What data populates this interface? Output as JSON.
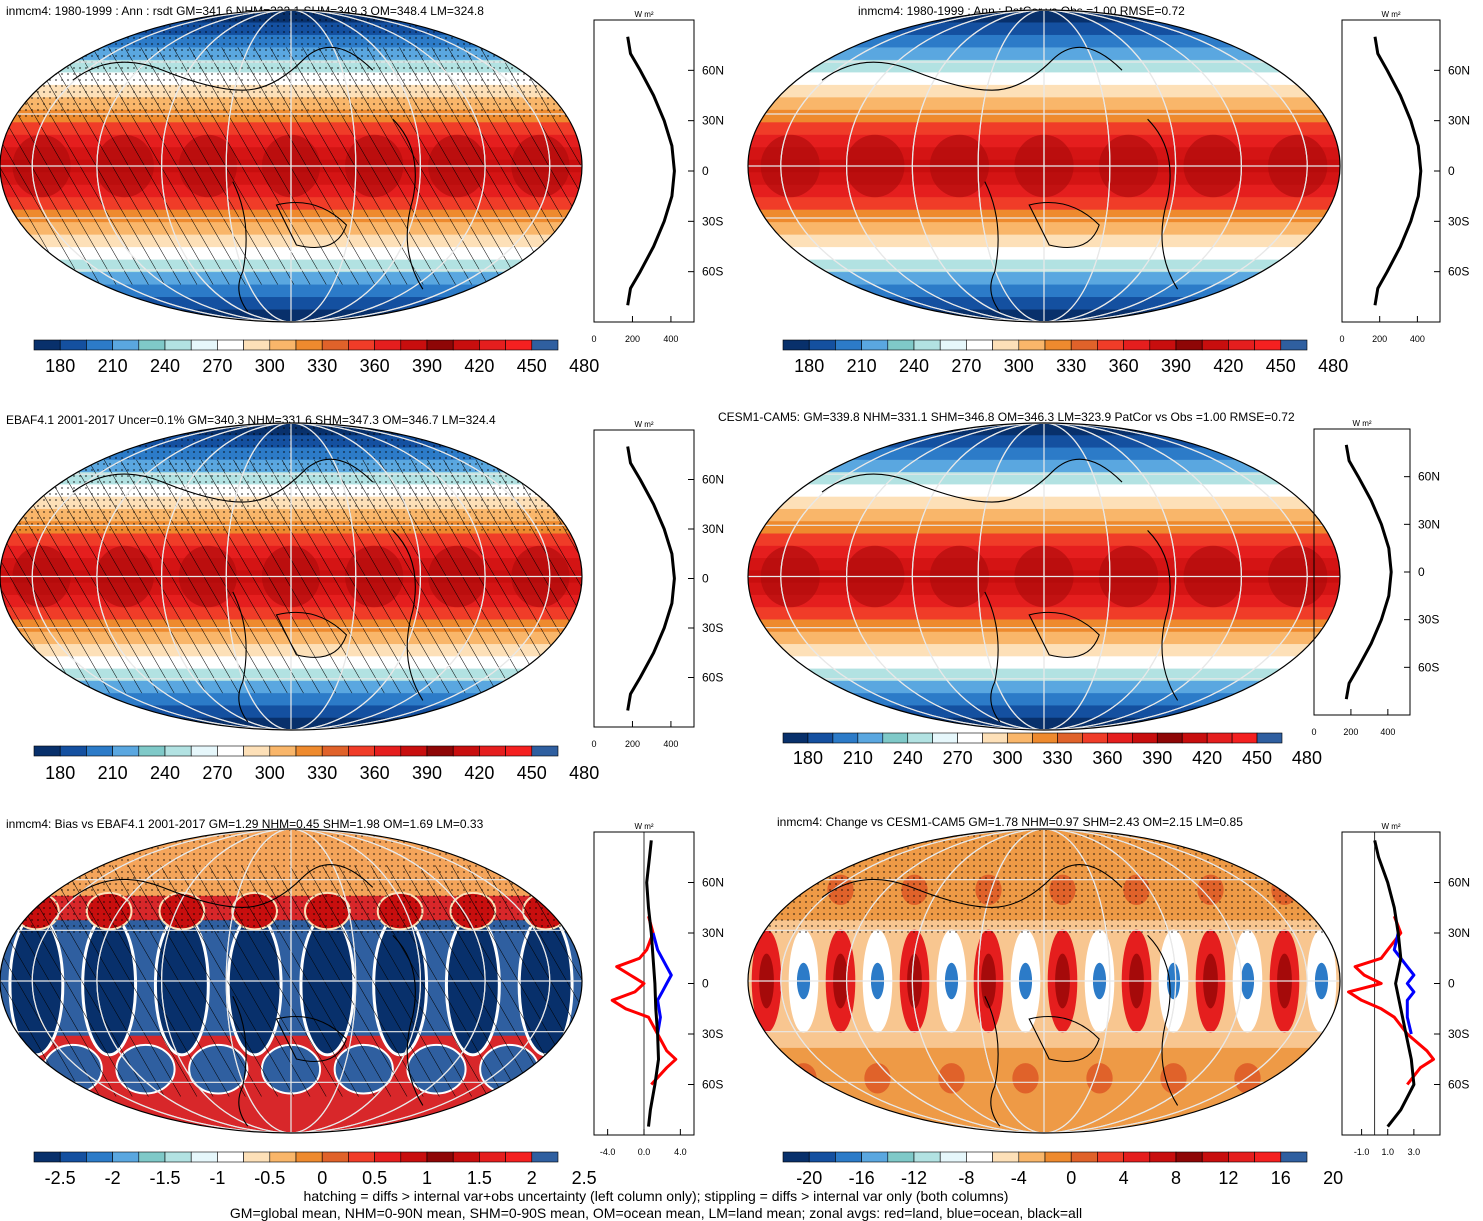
{
  "footer": {
    "line1": "hatching = diffs > internal var+obs uncertainty (left column only); stippling = diffs > internal var only (both columns)",
    "line2": "GM=global mean, NHM=0-90N mean, SHM=0-90S mean, OM=ocean mean, LM=land mean; zonal avgs: red=land, blue=ocean, black=all"
  },
  "palettes": {
    "full": [
      "#08306b",
      "#1450a0",
      "#2c7bc8",
      "#5aa7e0",
      "#7fc9c8",
      "#b2e2e2",
      "#e6f7fb",
      "#ffffff",
      "#fde0b8",
      "#f9b66a",
      "#ee8a2e",
      "#e0622a",
      "#f03c28",
      "#e51e1e",
      "#c80e0e",
      "#8e0606",
      "#c80e0e",
      "#e51e1e",
      "#f42020",
      "#2f5fa0"
    ],
    "bias": [
      "#08306b",
      "#1450a0",
      "#2c7bc8",
      "#5aa7e0",
      "#7fc9c8",
      "#b2e2e2",
      "#e6f7fb",
      "#ffffff",
      "#fde0b8",
      "#f9b66a",
      "#ee8a2e",
      "#e0622a",
      "#f03c28",
      "#e51e1e",
      "#c80e0e",
      "#8e0606",
      "#c80e0e",
      "#e51e1e",
      "#f42020",
      "#2f5fa0"
    ]
  },
  "chart_data": [
    {
      "type": "heatmap",
      "panel": "top-left",
      "title": "inmcm4: 1980-1999 : Ann : rsdt GM=341.6 NHM=332.1 SHM=349.3 OM=348.4 LM=324.8",
      "colorbar_ticks": [
        "180",
        "210",
        "240",
        "270",
        "300",
        "330",
        "360",
        "390",
        "420",
        "450",
        "480"
      ],
      "hatching": true,
      "stippling": true,
      "zonal": {
        "unit": "W m²",
        "xticks": [
          "0",
          "200",
          "400"
        ],
        "xlim": [
          0,
          520
        ],
        "ylabels": [
          "60N",
          "30N",
          "0",
          "30S",
          "60S"
        ],
        "series": [
          {
            "name": "all",
            "color": "#000000",
            "lat": [
              80,
              70,
              60,
              45,
              30,
              15,
              0,
              -15,
              -30,
              -45,
              -60,
              -70,
              -80
            ],
            "values": [
              175,
              190,
              240,
              310,
              365,
              405,
              418,
              405,
              365,
              310,
              240,
              190,
              175
            ]
          }
        ]
      }
    },
    {
      "type": "heatmap",
      "panel": "top-right",
      "title": "inmcm4: 1980-1999 : Ann : PatCor vs Obs =1.00 RMSE=0.72",
      "colorbar_ticks": [
        "180",
        "210",
        "240",
        "270",
        "300",
        "330",
        "360",
        "390",
        "420",
        "450",
        "480"
      ],
      "hatching": false,
      "stippling": false,
      "zonal": {
        "unit": "W m²",
        "xticks": [
          "0",
          "200",
          "400"
        ],
        "xlim": [
          0,
          520
        ],
        "ylabels": [
          "60N",
          "30N",
          "0",
          "30S",
          "60S"
        ],
        "series": [
          {
            "name": "all",
            "color": "#000000",
            "lat": [
              80,
              70,
              60,
              45,
              30,
              15,
              0,
              -15,
              -30,
              -45,
              -60,
              -70,
              -80
            ],
            "values": [
              175,
              190,
              240,
              310,
              365,
              405,
              418,
              405,
              365,
              310,
              240,
              190,
              175
            ]
          }
        ]
      }
    },
    {
      "type": "heatmap",
      "panel": "middle-left",
      "title": "EBAF4.1 2001-2017 Uncer=0.1% GM=340.3 NHM=331.6 SHM=347.3 OM=346.7 LM=324.4",
      "colorbar_ticks": [
        "180",
        "210",
        "240",
        "270",
        "300",
        "330",
        "360",
        "390",
        "420",
        "450",
        "480"
      ],
      "hatching": true,
      "stippling": true,
      "zonal": {
        "unit": "W m²",
        "xticks": [
          "0",
          "200",
          "400"
        ],
        "xlim": [
          0,
          520
        ],
        "ylabels": [
          "60N",
          "30N",
          "0",
          "30S",
          "60S"
        ],
        "series": [
          {
            "name": "all",
            "color": "#000000",
            "lat": [
              80,
              70,
              60,
              45,
              30,
              15,
              0,
              -15,
              -30,
              -45,
              -60,
              -70,
              -80
            ],
            "values": [
              175,
              190,
              240,
              310,
              365,
              405,
              418,
              405,
              365,
              310,
              240,
              190,
              175
            ]
          }
        ]
      }
    },
    {
      "type": "heatmap",
      "panel": "middle-right",
      "title": "CESM1-CAM5: GM=339.8 NHM=331.1 SHM=346.8 OM=346.3 LM=323.9 PatCor vs Obs =1.00 RMSE=0.72",
      "colorbar_ticks": [
        "180",
        "210",
        "240",
        "270",
        "300",
        "330",
        "360",
        "390",
        "420",
        "450",
        "480"
      ],
      "hatching": false,
      "stippling": false,
      "zonal": {
        "unit": "W m²",
        "xticks": [
          "0",
          "200",
          "400"
        ],
        "xlim": [
          0,
          520
        ],
        "ylabels": [
          "60N",
          "30N",
          "0",
          "30S",
          "60S"
        ],
        "series": [
          {
            "name": "all",
            "color": "#000000",
            "lat": [
              80,
              70,
              60,
              45,
              30,
              15,
              0,
              -15,
              -30,
              -45,
              -60,
              -70,
              -80
            ],
            "values": [
              175,
              190,
              240,
              310,
              365,
              405,
              418,
              405,
              365,
              310,
              240,
              190,
              175
            ]
          }
        ]
      }
    },
    {
      "type": "heatmap",
      "panel": "bottom-left",
      "title": "inmcm4: Bias vs EBAF4.1 2001-2017 GM=1.29 NHM=0.45 SHM=1.98 OM=1.69 LM=0.33",
      "colorbar_ticks": [
        "-2.5",
        "-2",
        "-1.5",
        "-1",
        "-0.5",
        "0",
        "0.5",
        "1",
        "1.5",
        "2",
        "2.5"
      ],
      "hatching": true,
      "stippling": true,
      "zonal": {
        "unit": "W m²",
        "xticks": [
          "-4.0",
          "0.0",
          "4.0"
        ],
        "xlim": [
          -5.5,
          5.5
        ],
        "ylabels": [
          "60N",
          "30N",
          "0",
          "30S",
          "60S"
        ],
        "series": [
          {
            "name": "land",
            "color": "#ff0000",
            "lat": [
              40,
              30,
              20,
              15,
              10,
              5,
              0,
              -5,
              -10,
              -15,
              -20,
              -30,
              -40,
              -45,
              -50,
              -60
            ],
            "values": [
              0.5,
              1.0,
              0.3,
              -0.5,
              -3.0,
              -1.5,
              0.0,
              -1.0,
              -3.5,
              -2.0,
              0.5,
              1.5,
              2.5,
              3.5,
              2.5,
              0.8
            ]
          },
          {
            "name": "ocean",
            "color": "#0000ff",
            "lat": [
              30,
              20,
              10,
              5,
              0,
              -5,
              -10,
              -20,
              -30
            ],
            "values": [
              1.0,
              1.5,
              2.5,
              3.0,
              2.5,
              2.0,
              1.5,
              1.8,
              1.5
            ]
          },
          {
            "name": "all",
            "color": "#000000",
            "lat": [
              85,
              75,
              60,
              45,
              30,
              15,
              0,
              -15,
              -30,
              -45,
              -60,
              -75,
              -85
            ],
            "values": [
              0.8,
              0.6,
              0.3,
              0.5,
              0.8,
              1.0,
              1.2,
              1.3,
              1.5,
              1.6,
              1.2,
              0.7,
              0.5
            ]
          }
        ]
      }
    },
    {
      "type": "heatmap",
      "panel": "bottom-right",
      "title": "inmcm4: Change vs CESM1-CAM5 GM=1.78 NHM=0.97 SHM=2.43 OM=2.15 LM=0.85",
      "colorbar_ticks": [
        "-20",
        "-16",
        "-12",
        "-8",
        "-4",
        "0",
        "4",
        "8",
        "12",
        "16",
        "20"
      ],
      "hatching": false,
      "stippling": true,
      "zonal": {
        "unit": "W m²",
        "xticks": [
          "-1.0",
          "1.0",
          "3.0"
        ],
        "xlim": [
          -2.5,
          5.0
        ],
        "ylabels": [
          "60N",
          "30N",
          "0",
          "30S",
          "60S"
        ],
        "series": [
          {
            "name": "land",
            "color": "#ff0000",
            "lat": [
              40,
              30,
              20,
              15,
              10,
              5,
              0,
              -5,
              -10,
              -15,
              -20,
              -30,
              -40,
              -45,
              -50,
              -60
            ],
            "values": [
              1.5,
              2.0,
              1.0,
              0.5,
              -1.5,
              -0.8,
              0.5,
              -2.0,
              -1.0,
              0.5,
              1.5,
              2.5,
              4.0,
              4.5,
              3.5,
              2.5
            ]
          },
          {
            "name": "ocean",
            "color": "#0000ff",
            "lat": [
              30,
              20,
              10,
              5,
              0,
              -5,
              -10,
              -20,
              -30
            ],
            "values": [
              1.8,
              1.5,
              2.5,
              3.0,
              2.5,
              3.0,
              2.5,
              2.5,
              2.8
            ]
          },
          {
            "name": "all",
            "color": "#000000",
            "lat": [
              85,
              75,
              60,
              45,
              30,
              15,
              0,
              -15,
              -30,
              -45,
              -60,
              -75,
              -85
            ],
            "values": [
              0.0,
              0.3,
              1.0,
              1.5,
              1.8,
              2.0,
              1.6,
              2.0,
              2.4,
              2.8,
              3.0,
              2.0,
              1.0
            ]
          }
        ]
      }
    }
  ]
}
